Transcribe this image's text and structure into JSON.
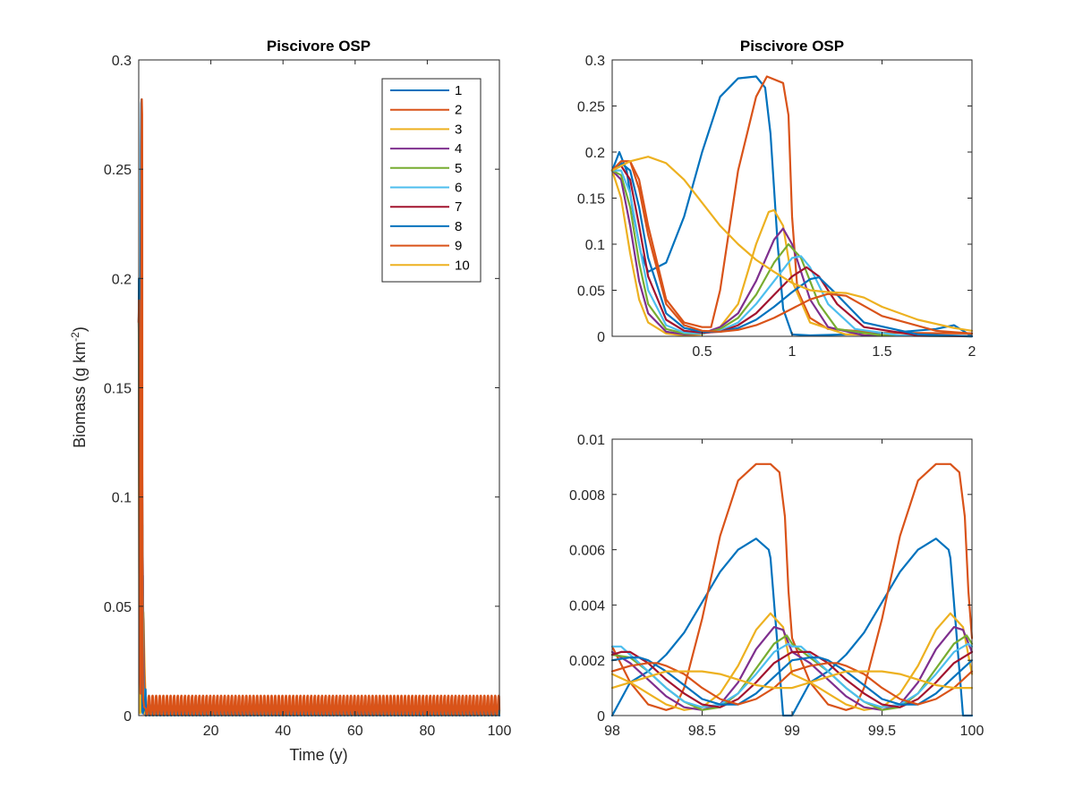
{
  "colors": [
    "#0072BD",
    "#D95319",
    "#EDB120",
    "#7E2F8E",
    "#77AC30",
    "#4DBEEE",
    "#A2142F",
    "#0072BD",
    "#D95319",
    "#EDB120"
  ],
  "chart_data": [
    {
      "type": "line",
      "title": "Piscivore OSP",
      "xlabel": "Time (y)",
      "ylabel_main": "Biomass (g km",
      "ylabel_sup": "-2",
      "ylabel_close": ")",
      "xlim": [
        0,
        100
      ],
      "ylim": [
        0,
        0.3
      ],
      "xticks": [
        20,
        40,
        60,
        80,
        100
      ],
      "xtick_labels": [
        "20",
        "40",
        "60",
        "80",
        "100"
      ],
      "yticks": [
        0,
        0.05,
        0.1,
        0.15,
        0.2,
        0.25,
        0.3
      ],
      "ytick_labels": [
        "0",
        "0.05",
        "0.1",
        "0.15",
        "0.2",
        "0.25",
        "0.3"
      ],
      "legend": {
        "placement": "top-right",
        "entries": [
          "1",
          "2",
          "3",
          "4",
          "5",
          "6",
          "7",
          "8",
          "9",
          "10"
        ]
      },
      "initial_value": 0.18,
      "peaks": [
        {
          "series": 1,
          "x": 0.8,
          "y": 0.282
        },
        {
          "series": 2,
          "x": 0.86,
          "y": 0.282
        },
        {
          "series": 3,
          "x": 0.9,
          "y": 0.137
        },
        {
          "series": 4,
          "x": 0.95,
          "y": 0.117
        },
        {
          "series": 5,
          "x": 0.98,
          "y": 0.1
        },
        {
          "series": 10,
          "x": 0.2,
          "y": 0.195
        }
      ],
      "steady_state_band": {
        "series_1_max": 0.0064,
        "series_2_max": 0.0091,
        "others_max": 0.0037,
        "period": 1
      }
    },
    {
      "type": "line",
      "title": "Piscivore OSP",
      "xlim": [
        0,
        2
      ],
      "ylim": [
        0,
        0.3
      ],
      "xticks": [
        0.5,
        1,
        1.5,
        2
      ],
      "xtick_labels": [
        "0.5",
        "1",
        "1.5",
        "2"
      ],
      "yticks": [
        0,
        0.05,
        0.1,
        0.15,
        0.2,
        0.25,
        0.3
      ],
      "ytick_labels": [
        "0",
        "0.05",
        "0.1",
        "0.15",
        "0.2",
        "0.25",
        "0.3"
      ],
      "series": [
        {
          "name": "1",
          "x": [
            0,
            0.04,
            0.08,
            0.12,
            0.16,
            0.2,
            0.3,
            0.4,
            0.5,
            0.6,
            0.7,
            0.8,
            0.85,
            0.88,
            0.92,
            0.95,
            1.0,
            1.1,
            1.5,
            1.8,
            1.9,
            2.0
          ],
          "y": [
            0.18,
            0.2,
            0.18,
            0.13,
            0.09,
            0.07,
            0.08,
            0.13,
            0.2,
            0.26,
            0.28,
            0.282,
            0.27,
            0.22,
            0.1,
            0.03,
            0.002,
            0.001,
            0.003,
            0.008,
            0.012,
            0
          ]
        },
        {
          "name": "2",
          "x": [
            0,
            0.05,
            0.1,
            0.15,
            0.2,
            0.3,
            0.4,
            0.5,
            0.55,
            0.6,
            0.7,
            0.8,
            0.86,
            0.95,
            0.98,
            1.0,
            1.03,
            1.1,
            1.2,
            1.5,
            2.0
          ],
          "y": [
            0.18,
            0.19,
            0.19,
            0.17,
            0.12,
            0.04,
            0.015,
            0.01,
            0.01,
            0.05,
            0.18,
            0.26,
            0.282,
            0.275,
            0.24,
            0.13,
            0.05,
            0.02,
            0.008,
            0.004,
            0.003
          ]
        },
        {
          "name": "3",
          "x": [
            0,
            0.05,
            0.1,
            0.15,
            0.2,
            0.3,
            0.4,
            0.5,
            0.6,
            0.7,
            0.8,
            0.87,
            0.9,
            0.95,
            1.0,
            1.1,
            1.3,
            2.0
          ],
          "y": [
            0.18,
            0.15,
            0.09,
            0.04,
            0.015,
            0.003,
            0.001,
            0.002,
            0.01,
            0.035,
            0.1,
            0.135,
            0.137,
            0.12,
            0.06,
            0.015,
            0.002,
            0
          ]
        },
        {
          "name": "4",
          "x": [
            0,
            0.05,
            0.1,
            0.15,
            0.2,
            0.3,
            0.4,
            0.5,
            0.6,
            0.7,
            0.8,
            0.9,
            0.95,
            1.0,
            1.1,
            1.2,
            1.4,
            2.0
          ],
          "y": [
            0.18,
            0.17,
            0.12,
            0.06,
            0.025,
            0.005,
            0.002,
            0.003,
            0.01,
            0.025,
            0.06,
            0.105,
            0.117,
            0.1,
            0.04,
            0.01,
            0.001,
            0
          ]
        },
        {
          "name": "5",
          "x": [
            0,
            0.05,
            0.1,
            0.15,
            0.2,
            0.3,
            0.4,
            0.5,
            0.6,
            0.7,
            0.8,
            0.9,
            0.98,
            1.05,
            1.15,
            1.25,
            1.5,
            2.0
          ],
          "y": [
            0.18,
            0.175,
            0.14,
            0.08,
            0.035,
            0.008,
            0.003,
            0.003,
            0.008,
            0.02,
            0.045,
            0.08,
            0.1,
            0.085,
            0.035,
            0.008,
            0.001,
            0
          ]
        },
        {
          "name": "6",
          "x": [
            0,
            0.05,
            0.1,
            0.15,
            0.2,
            0.3,
            0.4,
            0.5,
            0.6,
            0.7,
            0.8,
            0.9,
            1.0,
            1.05,
            1.1,
            1.2,
            1.35,
            1.6,
            2.0
          ],
          "y": [
            0.18,
            0.18,
            0.155,
            0.1,
            0.05,
            0.012,
            0.004,
            0.003,
            0.006,
            0.015,
            0.035,
            0.06,
            0.085,
            0.087,
            0.075,
            0.035,
            0.008,
            0.001,
            0
          ]
        },
        {
          "name": "7",
          "x": [
            0,
            0.05,
            0.1,
            0.15,
            0.2,
            0.3,
            0.4,
            0.5,
            0.6,
            0.7,
            0.8,
            0.9,
            1.0,
            1.08,
            1.15,
            1.25,
            1.4,
            1.7,
            2.0
          ],
          "y": [
            0.18,
            0.185,
            0.17,
            0.12,
            0.065,
            0.018,
            0.006,
            0.004,
            0.005,
            0.012,
            0.025,
            0.045,
            0.065,
            0.075,
            0.065,
            0.035,
            0.01,
            0.001,
            0
          ]
        },
        {
          "name": "8",
          "x": [
            0,
            0.05,
            0.1,
            0.15,
            0.2,
            0.3,
            0.4,
            0.5,
            0.6,
            0.7,
            0.8,
            0.9,
            1.0,
            1.1,
            1.15,
            1.25,
            1.4,
            1.7,
            2.0
          ],
          "y": [
            0.18,
            0.188,
            0.18,
            0.14,
            0.085,
            0.025,
            0.009,
            0.005,
            0.005,
            0.009,
            0.018,
            0.032,
            0.048,
            0.062,
            0.064,
            0.045,
            0.015,
            0.002,
            0
          ]
        },
        {
          "name": "9",
          "x": [
            0,
            0.05,
            0.1,
            0.15,
            0.2,
            0.3,
            0.4,
            0.5,
            0.6,
            0.7,
            0.8,
            0.9,
            1.0,
            1.1,
            1.2,
            1.3,
            1.5,
            1.8,
            2.0
          ],
          "y": [
            0.18,
            0.19,
            0.19,
            0.16,
            0.11,
            0.035,
            0.012,
            0.006,
            0.005,
            0.007,
            0.012,
            0.02,
            0.03,
            0.04,
            0.046,
            0.044,
            0.022,
            0.006,
            0.003
          ]
        },
        {
          "name": "10",
          "x": [
            0,
            0.1,
            0.2,
            0.3,
            0.4,
            0.5,
            0.6,
            0.7,
            0.8,
            0.9,
            1.0,
            1.1,
            1.2,
            1.3,
            1.4,
            1.5,
            1.7,
            1.9,
            2.0
          ],
          "y": [
            0.18,
            0.19,
            0.195,
            0.188,
            0.17,
            0.145,
            0.12,
            0.1,
            0.083,
            0.07,
            0.058,
            0.05,
            0.048,
            0.047,
            0.042,
            0.032,
            0.018,
            0.009,
            0.006
          ]
        }
      ]
    },
    {
      "type": "line",
      "xlim": [
        98,
        100
      ],
      "ylim": [
        0,
        0.01
      ],
      "xticks": [
        98,
        98.5,
        99,
        99.5,
        100
      ],
      "xtick_labels": [
        "98",
        "98.5",
        "99",
        "99.5",
        "100"
      ],
      "yticks": [
        0,
        0.002,
        0.004,
        0.006,
        0.008,
        0.01
      ],
      "ytick_labels": [
        "0",
        "0.002",
        "0.004",
        "0.006",
        "0.008",
        "0.01"
      ],
      "period": 1,
      "series": [
        {
          "name": "1",
          "x": [
            98,
            98.1,
            98.2,
            98.3,
            98.4,
            98.5,
            98.6,
            98.7,
            98.8,
            98.87,
            98.88,
            98.95,
            99.0
          ],
          "y": [
            0,
            0.0012,
            0.0016,
            0.0022,
            0.003,
            0.0041,
            0.0052,
            0.006,
            0.0064,
            0.006,
            0.0057,
            0,
            0
          ]
        },
        {
          "name": "2",
          "x": [
            98,
            98.1,
            98.2,
            98.3,
            98.35,
            98.4,
            98.5,
            98.6,
            98.7,
            98.8,
            98.88,
            98.93,
            98.96,
            98.98,
            99.0
          ],
          "y": [
            0.0025,
            0.0012,
            0.0004,
            0.0002,
            0.0003,
            0.001,
            0.0035,
            0.0065,
            0.0085,
            0.0091,
            0.0091,
            0.0088,
            0.0072,
            0.0045,
            0.0028
          ]
        },
        {
          "name": "3",
          "x": [
            98,
            98.1,
            98.2,
            98.3,
            98.4,
            98.5,
            98.6,
            98.7,
            98.8,
            98.88,
            98.95,
            99.0
          ],
          "y": [
            0.0015,
            0.0012,
            0.0008,
            0.0004,
            0.0002,
            0.0003,
            0.0008,
            0.0018,
            0.0031,
            0.0037,
            0.0032,
            0.0015
          ]
        },
        {
          "name": "4",
          "x": [
            98,
            98.1,
            98.2,
            98.3,
            98.4,
            98.5,
            98.6,
            98.7,
            98.8,
            98.9,
            98.95,
            99.0
          ],
          "y": [
            0.0023,
            0.0019,
            0.0013,
            0.0007,
            0.0003,
            0.0002,
            0.0004,
            0.0012,
            0.0024,
            0.0032,
            0.0031,
            0.0023
          ]
        },
        {
          "name": "5",
          "x": [
            98,
            98.1,
            98.2,
            98.3,
            98.4,
            98.5,
            98.6,
            98.7,
            98.8,
            98.9,
            98.97,
            99.0
          ],
          "y": [
            0.0022,
            0.0021,
            0.0016,
            0.001,
            0.0005,
            0.0002,
            0.0003,
            0.0008,
            0.0017,
            0.0026,
            0.0029,
            0.0026
          ]
        },
        {
          "name": "6",
          "x": [
            98,
            98.05,
            98.1,
            98.2,
            98.3,
            98.4,
            98.5,
            98.6,
            98.7,
            98.8,
            98.9,
            98.98,
            99.0
          ],
          "y": [
            0.0025,
            0.0025,
            0.0022,
            0.0016,
            0.001,
            0.0005,
            0.0003,
            0.0004,
            0.0008,
            0.0015,
            0.0023,
            0.0026,
            0.0025
          ]
        },
        {
          "name": "7",
          "x": [
            98,
            98.05,
            98.1,
            98.2,
            98.3,
            98.4,
            98.5,
            98.6,
            98.7,
            98.8,
            98.9,
            99.0
          ],
          "y": [
            0.0022,
            0.0023,
            0.0023,
            0.0019,
            0.0013,
            0.0008,
            0.0004,
            0.0003,
            0.0006,
            0.0012,
            0.0019,
            0.0023
          ]
        },
        {
          "name": "8",
          "x": [
            98,
            98.1,
            98.15,
            98.2,
            98.3,
            98.4,
            98.5,
            98.6,
            98.7,
            98.8,
            98.9,
            99.0
          ],
          "y": [
            0.002,
            0.0021,
            0.0021,
            0.002,
            0.0016,
            0.0011,
            0.0006,
            0.0004,
            0.0004,
            0.0008,
            0.0014,
            0.002
          ]
        },
        {
          "name": "9",
          "x": [
            98,
            98.1,
            98.2,
            98.25,
            98.3,
            98.4,
            98.5,
            98.6,
            98.7,
            98.8,
            98.9,
            99.0
          ],
          "y": [
            0.0016,
            0.0018,
            0.0019,
            0.0019,
            0.0018,
            0.0015,
            0.001,
            0.0006,
            0.0004,
            0.0006,
            0.001,
            0.0016
          ]
        },
        {
          "name": "10",
          "x": [
            98,
            98.1,
            98.2,
            98.3,
            98.4,
            98.5,
            98.6,
            98.7,
            98.8,
            98.9,
            99.0
          ],
          "y": [
            0.001,
            0.0012,
            0.0014,
            0.0016,
            0.0016,
            0.0016,
            0.0015,
            0.0013,
            0.0011,
            0.001,
            0.001
          ]
        }
      ]
    }
  ]
}
